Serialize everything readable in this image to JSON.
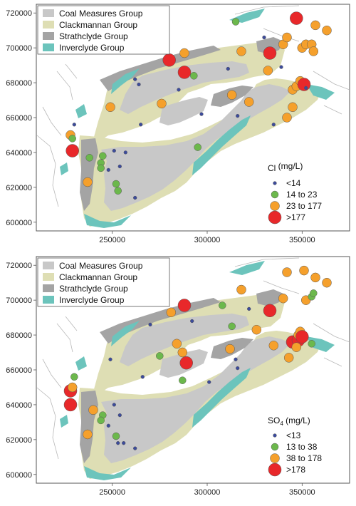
{
  "colors": {
    "coal_measures": "#c8c8c8",
    "clackmannan": "#dedeb4",
    "strathclyde": "#a4a4a4",
    "inverclyde": "#6cc4bc",
    "frame": "#555555",
    "coast": "#b8b8b8",
    "dot_blue": "#3c4b9c",
    "dot_green": "#6cb84c",
    "dot_orange": "#f5a02c",
    "dot_red": "#e8282a"
  },
  "panels": [
    {
      "id": "chloride",
      "map": {
        "y_ticks": [
          "720000",
          "700000",
          "680000",
          "660000",
          "640000",
          "620000",
          "600000"
        ],
        "x_ticks": [
          "250000",
          "300000",
          "350000"
        ]
      },
      "legend_units": {
        "title_main": "Cl",
        "title_sub": "",
        "title_rest": "  (mg/L)",
        "classes": [
          {
            "label": "<14",
            "color_key": "dot_blue",
            "size": "small"
          },
          {
            "label": "14 to 23",
            "color_key": "dot_green",
            "size": "medium"
          },
          {
            "label": "23 to 177",
            "color_key": "dot_orange",
            "size": "large"
          },
          {
            "label": ">177",
            "color_key": "dot_red",
            "size": "xlarge"
          }
        ]
      },
      "legend_geology": [
        {
          "label": "Coal Measures Group",
          "color_key": "coal_measures"
        },
        {
          "label": "Clackmannan Group",
          "color_key": "clackmannan"
        },
        {
          "label": "Strathclyde Group",
          "color_key": "strathclyde"
        },
        {
          "label": "Inverclyde Group",
          "color_key": "inverclyde"
        }
      ],
      "samples": [
        {
          "e": 229,
          "n": 641,
          "c": "red"
        },
        {
          "e": 228,
          "n": 650,
          "c": "orange"
        },
        {
          "e": 229,
          "n": 648,
          "c": "green"
        },
        {
          "e": 230,
          "n": 656,
          "c": "blue"
        },
        {
          "e": 237,
          "n": 623,
          "c": "orange"
        },
        {
          "e": 238,
          "n": 637,
          "c": "green"
        },
        {
          "e": 244,
          "n": 634,
          "c": "green"
        },
        {
          "e": 244,
          "n": 631,
          "c": "green"
        },
        {
          "e": 245,
          "n": 638,
          "c": "green"
        },
        {
          "e": 248,
          "n": 630,
          "c": "blue"
        },
        {
          "e": 251,
          "n": 641,
          "c": "blue"
        },
        {
          "e": 252,
          "n": 622,
          "c": "green"
        },
        {
          "e": 253,
          "n": 618,
          "c": "green"
        },
        {
          "e": 254,
          "n": 632,
          "c": "blue"
        },
        {
          "e": 257,
          "n": 640,
          "c": "blue"
        },
        {
          "e": 262,
          "n": 614,
          "c": "blue"
        },
        {
          "e": 249,
          "n": 666,
          "c": "orange"
        },
        {
          "e": 262,
          "n": 682,
          "c": "blue"
        },
        {
          "e": 264,
          "n": 679,
          "c": "blue"
        },
        {
          "e": 265,
          "n": 656,
          "c": "blue"
        },
        {
          "e": 276,
          "n": 668,
          "c": "orange"
        },
        {
          "e": 280,
          "n": 693,
          "c": "red"
        },
        {
          "e": 285,
          "n": 676,
          "c": "blue"
        },
        {
          "e": 288,
          "n": 686,
          "c": "red"
        },
        {
          "e": 288,
          "n": 697,
          "c": "orange"
        },
        {
          "e": 293,
          "n": 684,
          "c": "green"
        },
        {
          "e": 297,
          "n": 662,
          "c": "blue"
        },
        {
          "e": 295,
          "n": 643,
          "c": "green"
        },
        {
          "e": 311,
          "n": 688,
          "c": "blue"
        },
        {
          "e": 313,
          "n": 673,
          "c": "orange"
        },
        {
          "e": 316,
          "n": 661,
          "c": "blue"
        },
        {
          "e": 318,
          "n": 698,
          "c": "orange"
        },
        {
          "e": 322,
          "n": 669,
          "c": "orange"
        },
        {
          "e": 330,
          "n": 706,
          "c": "blue"
        },
        {
          "e": 333,
          "n": 697,
          "c": "red"
        },
        {
          "e": 332,
          "n": 687,
          "c": "orange"
        },
        {
          "e": 335,
          "n": 656,
          "c": "blue"
        },
        {
          "e": 345,
          "n": 666,
          "c": "orange"
        },
        {
          "e": 345,
          "n": 676,
          "c": "orange"
        },
        {
          "e": 347,
          "n": 678,
          "c": "orange"
        },
        {
          "e": 349,
          "n": 681,
          "c": "orange"
        },
        {
          "e": 351,
          "n": 679,
          "c": "red"
        },
        {
          "e": 352,
          "n": 677,
          "c": "blue"
        },
        {
          "e": 340,
          "n": 702,
          "c": "orange"
        },
        {
          "e": 342,
          "n": 706,
          "c": "orange"
        },
        {
          "e": 347,
          "n": 717,
          "c": "red"
        },
        {
          "e": 350,
          "n": 700,
          "c": "orange"
        },
        {
          "e": 352,
          "n": 702,
          "c": "orange"
        },
        {
          "e": 355,
          "n": 702,
          "c": "orange"
        },
        {
          "e": 356,
          "n": 698,
          "c": "orange"
        },
        {
          "e": 357,
          "n": 713,
          "c": "orange"
        },
        {
          "e": 363,
          "n": 710,
          "c": "orange"
        },
        {
          "e": 339,
          "n": 689,
          "c": "blue"
        },
        {
          "e": 315,
          "n": 715,
          "c": "green"
        },
        {
          "e": 342,
          "n": 660,
          "c": "orange"
        }
      ]
    },
    {
      "id": "sulphate",
      "map": {
        "y_ticks": [
          "720000",
          "700000",
          "680000",
          "660000",
          "640000",
          "620000",
          "600000"
        ],
        "x_ticks": [
          "250000",
          "300000",
          "350000"
        ]
      },
      "legend_units": {
        "title_main": "SO",
        "title_sub": "4",
        "title_rest": " (mg/L)",
        "classes": [
          {
            "label": "<13",
            "color_key": "dot_blue",
            "size": "small"
          },
          {
            "label": "13 to 38",
            "color_key": "dot_green",
            "size": "medium"
          },
          {
            "label": "38 to 178",
            "color_key": "dot_orange",
            "size": "large"
          },
          {
            "label": ">178",
            "color_key": "dot_red",
            "size": "xlarge"
          }
        ]
      },
      "legend_geology": [
        {
          "label": "Coal Measures Group",
          "color_key": "coal_measures"
        },
        {
          "label": "Clackmannan Group",
          "color_key": "clackmannan"
        },
        {
          "label": "Strathclyde Group",
          "color_key": "strathclyde"
        },
        {
          "label": "Inverclyde Group",
          "color_key": "inverclyde"
        }
      ],
      "samples": [
        {
          "e": 228,
          "n": 640,
          "c": "red"
        },
        {
          "e": 228,
          "n": 648,
          "c": "red"
        },
        {
          "e": 229,
          "n": 650,
          "c": "orange"
        },
        {
          "e": 230,
          "n": 656,
          "c": "green"
        },
        {
          "e": 237,
          "n": 623,
          "c": "orange"
        },
        {
          "e": 240,
          "n": 637,
          "c": "orange"
        },
        {
          "e": 245,
          "n": 634,
          "c": "green"
        },
        {
          "e": 244,
          "n": 631,
          "c": "green"
        },
        {
          "e": 248,
          "n": 628,
          "c": "blue"
        },
        {
          "e": 251,
          "n": 640,
          "c": "blue"
        },
        {
          "e": 252,
          "n": 622,
          "c": "green"
        },
        {
          "e": 253,
          "n": 618,
          "c": "blue"
        },
        {
          "e": 254,
          "n": 634,
          "c": "blue"
        },
        {
          "e": 256,
          "n": 618,
          "c": "blue"
        },
        {
          "e": 262,
          "n": 615,
          "c": "blue"
        },
        {
          "e": 249,
          "n": 666,
          "c": "blue"
        },
        {
          "e": 266,
          "n": 656,
          "c": "blue"
        },
        {
          "e": 270,
          "n": 686,
          "c": "blue"
        },
        {
          "e": 275,
          "n": 668,
          "c": "green"
        },
        {
          "e": 281,
          "n": 693,
          "c": "orange"
        },
        {
          "e": 284,
          "n": 675,
          "c": "orange"
        },
        {
          "e": 288,
          "n": 697,
          "c": "red"
        },
        {
          "e": 287,
          "n": 670,
          "c": "orange"
        },
        {
          "e": 289,
          "n": 664,
          "c": "red"
        },
        {
          "e": 287,
          "n": 654,
          "c": "green"
        },
        {
          "e": 292,
          "n": 688,
          "c": "blue"
        },
        {
          "e": 301,
          "n": 653,
          "c": "blue"
        },
        {
          "e": 308,
          "n": 697,
          "c": "green"
        },
        {
          "e": 312,
          "n": 672,
          "c": "orange"
        },
        {
          "e": 313,
          "n": 685,
          "c": "green"
        },
        {
          "e": 315,
          "n": 666,
          "c": "blue"
        },
        {
          "e": 316,
          "n": 661,
          "c": "blue"
        },
        {
          "e": 318,
          "n": 706,
          "c": "orange"
        },
        {
          "e": 322,
          "n": 695,
          "c": "blue"
        },
        {
          "e": 326,
          "n": 683,
          "c": "orange"
        },
        {
          "e": 333,
          "n": 694,
          "c": "red"
        },
        {
          "e": 335,
          "n": 674,
          "c": "orange"
        },
        {
          "e": 340,
          "n": 701,
          "c": "orange"
        },
        {
          "e": 342,
          "n": 716,
          "c": "orange"
        },
        {
          "e": 343,
          "n": 667,
          "c": "orange"
        },
        {
          "e": 345,
          "n": 676,
          "c": "red"
        },
        {
          "e": 348,
          "n": 677,
          "c": "red"
        },
        {
          "e": 348,
          "n": 680,
          "c": "orange"
        },
        {
          "e": 349,
          "n": 682,
          "c": "orange"
        },
        {
          "e": 350,
          "n": 679,
          "c": "red"
        },
        {
          "e": 351,
          "n": 717,
          "c": "orange"
        },
        {
          "e": 352,
          "n": 700,
          "c": "orange"
        },
        {
          "e": 355,
          "n": 702,
          "c": "green"
        },
        {
          "e": 356,
          "n": 704,
          "c": "green"
        },
        {
          "e": 357,
          "n": 713,
          "c": "orange"
        },
        {
          "e": 363,
          "n": 710,
          "c": "orange"
        },
        {
          "e": 355,
          "n": 675,
          "c": "green"
        },
        {
          "e": 347,
          "n": 673,
          "c": "orange"
        }
      ]
    }
  ]
}
